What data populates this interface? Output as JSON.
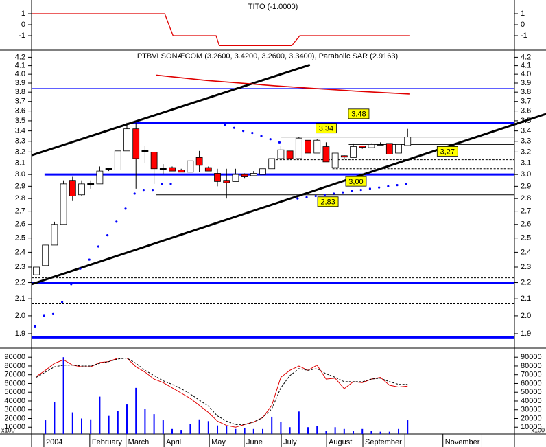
{
  "chart_data": [
    {
      "type": "step",
      "title": "TITO (-1.0000)",
      "color": "#e00000",
      "x": [
        -0.53,
        14.17,
        15.1,
        19.85,
        20.2,
        28.2,
        29.1,
        41.2
      ],
      "values": [
        1,
        1,
        -1,
        -1,
        -1.9,
        -1.9,
        -1,
        -1
      ],
      "xlim": [
        -0.53,
        52.8
      ],
      "ylim": [
        -2.25,
        2.25
      ],
      "yticks": [
        1,
        0,
        -1
      ]
    },
    {
      "type": "candlestick",
      "title": "PTBVLSONÆCOM (3.2600, 3.4200, 3.2600, 3.3400), Parabolic SAR (2.9163)",
      "log_scale": true,
      "xlim": [
        -0.53,
        52.8
      ],
      "ylim": [
        1.83,
        4.27
      ],
      "yticks": [
        4.2,
        4.1,
        {
          "value": 4,
          "label": "4.0"
        },
        3.9,
        3.8,
        3.7,
        3.6,
        3.5,
        3.4,
        3.3,
        3.2,
        3.1,
        {
          "value": 3,
          "label": "3.0"
        },
        2.9,
        2.8,
        2.7,
        2.6,
        2.5,
        2.4,
        2.3,
        2.2,
        2.1,
        {
          "value": 2,
          "label": "2.0"
        },
        1.9
      ],
      "up_color": "#ffffff",
      "down_color": "#ff0000",
      "flat_color": "#000000",
      "open": [
        2.25,
        2.31,
        2.45,
        2.6,
        2.95,
        2.83,
        2.92,
        2.92,
        3.05,
        3.04,
        3.21,
        3.42,
        3.21,
        3.2,
        3.05,
        3.06,
        3.04,
        3.02,
        3.15,
        3.06,
        3.01,
        2.95,
        2.94,
        3.0,
        2.99,
        3.0,
        3.05,
        3.14,
        3.21,
        3.14,
        3.31,
        3.19,
        3.25,
        3.06,
        3.16,
        3.15,
        3.25,
        3.24,
        3.27,
        3.28,
        3.19,
        3.26
      ],
      "high": [
        2.3,
        2.45,
        2.62,
        2.95,
        2.98,
        2.95,
        2.95,
        3.07,
        3.06,
        3.21,
        3.48,
        3.48,
        3.26,
        3.2,
        3.09,
        3.07,
        3.05,
        3.12,
        3.21,
        3.07,
        3.05,
        3.05,
        3.05,
        3.01,
        3.03,
        3.05,
        3.14,
        3.26,
        3.21,
        3.34,
        3.31,
        3.32,
        3.29,
        3.19,
        3.17,
        3.28,
        3.26,
        3.28,
        3.29,
        3.28,
        3.27,
        3.42
      ],
      "low": [
        2.25,
        2.31,
        2.45,
        2.6,
        2.78,
        2.82,
        2.88,
        2.92,
        3.03,
        3.04,
        3.21,
        2.88,
        3.1,
        2.92,
        3.0,
        3.03,
        3.02,
        3.02,
        3.02,
        3.03,
        2.9,
        2.8,
        2.94,
        2.97,
        2.99,
        3.0,
        3.05,
        3.14,
        3.14,
        3.14,
        3.19,
        3.19,
        3.11,
        3.06,
        3.14,
        3.15,
        3.23,
        3.24,
        3.27,
        3.18,
        3.19,
        3.26
      ],
      "close": [
        2.3,
        2.45,
        2.6,
        2.92,
        2.82,
        2.92,
        2.92,
        3.03,
        3.05,
        3.21,
        3.42,
        3.14,
        3.21,
        3.05,
        3.05,
        3.03,
        3.02,
        3.12,
        3.08,
        3.03,
        2.94,
        2.93,
        3.0,
        2.98,
        3.01,
        3.05,
        3.14,
        3.22,
        3.14,
        3.33,
        3.19,
        3.31,
        3.11,
        3.19,
        3.15,
        3.25,
        3.24,
        3.27,
        3.27,
        3.18,
        3.27,
        3.34
      ],
      "sar": {
        "color": "#0000ff",
        "values": [
          1.94,
          2.0,
          2.01,
          2.08,
          2.19,
          2.29,
          2.35,
          2.44,
          2.52,
          2.62,
          2.72,
          2.84,
          2.87,
          2.87,
          2.92,
          2.92,
          null,
          null,
          null,
          null,
          3.48,
          3.46,
          3.43,
          3.4,
          3.38,
          3.35,
          3.32,
          3.29,
          null,
          2.8,
          2.81,
          2.82,
          2.83,
          2.84,
          2.85,
          2.86,
          2.87,
          2.88,
          2.89,
          2.9,
          2.91,
          2.92
        ]
      },
      "average": {
        "color": "#e00000",
        "x": [
          13.26,
          18.7,
          26.3,
          30.8,
          35.4,
          41.2
        ],
        "values": [
          3.99,
          3.93,
          3.87,
          3.84,
          3.81,
          3.78
        ]
      },
      "trend_lines": [
        {
          "color": "#000000",
          "x": [
            -0.53,
            30.2
          ],
          "values": [
            3.17,
            4.11
          ]
        },
        {
          "color": "#000000",
          "x": [
            -0.53,
            56.3
          ],
          "values": [
            2.19,
            3.57
          ]
        }
      ],
      "levels": [
        {
          "value": 3.84,
          "style": "thin",
          "color": "#0000ff",
          "from": -0.53
        },
        {
          "value": 3.48,
          "style": "thick",
          "color": "#0000ff",
          "from": 10.4
        },
        {
          "value": 3.34,
          "style": "thin",
          "color": "#000000",
          "from": 27.05
        },
        {
          "value": 3.27,
          "style": "thin",
          "color": "#000000",
          "from": 34.5
        },
        {
          "value": 3.13,
          "style": "dashed",
          "color": "#000000",
          "from": 26.5
        },
        {
          "value": 3.05,
          "style": "dashed",
          "color": "#000000",
          "from": 32.7
        },
        {
          "value": 3.0,
          "style": "thick",
          "color": "#0000ff",
          "from": 0.9
        },
        {
          "value": 2.83,
          "style": "thin",
          "color": "#000000",
          "from": 13.2
        },
        {
          "value": 2.23,
          "style": "dashed",
          "color": "#000000",
          "from": -0.53
        },
        {
          "value": 2.2,
          "style": "thick",
          "color": "#0000ff",
          "from": -0.53
        },
        {
          "value": 2.07,
          "style": "dashed",
          "color": "#000000",
          "from": -0.53
        },
        {
          "value": 1.88,
          "style": "thick",
          "color": "#0000ff",
          "from": -0.53
        }
      ],
      "annotations": [
        {
          "text": "3,48",
          "value": 3.48,
          "x": 35.6,
          "position": "above"
        },
        {
          "text": "3,34",
          "value": 3.34,
          "x": 32.0,
          "position": "above"
        },
        {
          "text": "3,27",
          "value": 3.27,
          "x": 45.4,
          "position": "below"
        },
        {
          "text": "3,00",
          "value": 3.0,
          "x": 35.3,
          "position": "below"
        },
        {
          "text": "2,83",
          "value": 2.83,
          "x": 32.2,
          "position": "below"
        }
      ]
    },
    {
      "type": "bar",
      "color": "#0000ff",
      "unit_label": "x100",
      "values": [
        null,
        18000,
        39000,
        90000,
        27000,
        20000,
        19000,
        45000,
        23000,
        29000,
        36000,
        55000,
        31000,
        25000,
        18000,
        8000,
        7000,
        14000,
        19000,
        17000,
        12000,
        11000,
        8000,
        9000,
        8000,
        8000,
        22000,
        16000,
        10000,
        28000,
        10000,
        11000,
        6000,
        10000,
        8000,
        6000,
        8000,
        6000,
        5000,
        5000,
        8000,
        18000
      ],
      "series": [
        {
          "color": "#e00000",
          "dashed": false,
          "values": [
            68000,
            75000,
            83000,
            87000,
            81000,
            79000,
            79000,
            84000,
            85000,
            89000,
            89000,
            79000,
            73000,
            65000,
            61000,
            55000,
            49000,
            43000,
            35000,
            27000,
            17000,
            12000,
            10000,
            13000,
            16000,
            21000,
            35000,
            67000,
            75000,
            80000,
            75000,
            81000,
            65000,
            66000,
            54000,
            62000,
            61000,
            65000,
            67000,
            58000,
            56000,
            57000
          ]
        },
        {
          "color": "#000000",
          "dashed": true,
          "values": [
            67000,
            73000,
            79000,
            81000,
            81000,
            80000,
            80000,
            83000,
            85000,
            88000,
            89000,
            83000,
            75000,
            69000,
            63000,
            59000,
            54000,
            48000,
            41000,
            34000,
            23000,
            17000,
            13000,
            13000,
            16000,
            21000,
            31000,
            55000,
            69000,
            77000,
            75000,
            77000,
            71000,
            67000,
            62000,
            62000,
            62000,
            65000,
            66000,
            62000,
            59000,
            59000
          ]
        }
      ],
      "level": 71000,
      "xlim": [
        -0.53,
        52.8
      ],
      "ylim": [
        0,
        98000
      ],
      "yticks": [
        90000,
        80000,
        70000,
        60000,
        50000,
        40000,
        30000,
        20000,
        10000
      ],
      "xticks": [
        {
          "value": 0.83,
          "label": "2004"
        },
        {
          "value": 5.9,
          "label": "February"
        },
        {
          "value": 9.9,
          "label": "March"
        },
        {
          "value": 14.1,
          "label": "April"
        },
        {
          "value": 19.1,
          "label": "May"
        },
        {
          "value": 22.95,
          "label": "June"
        },
        {
          "value": 27.05,
          "label": "July"
        },
        {
          "value": 32.05,
          "label": "August"
        },
        {
          "value": 36.06,
          "label": "September"
        },
        {
          "value": 40.7,
          "label": null
        },
        {
          "value": 44.9,
          "label": "November"
        },
        {
          "value": 49.2,
          "label": null
        }
      ]
    }
  ]
}
